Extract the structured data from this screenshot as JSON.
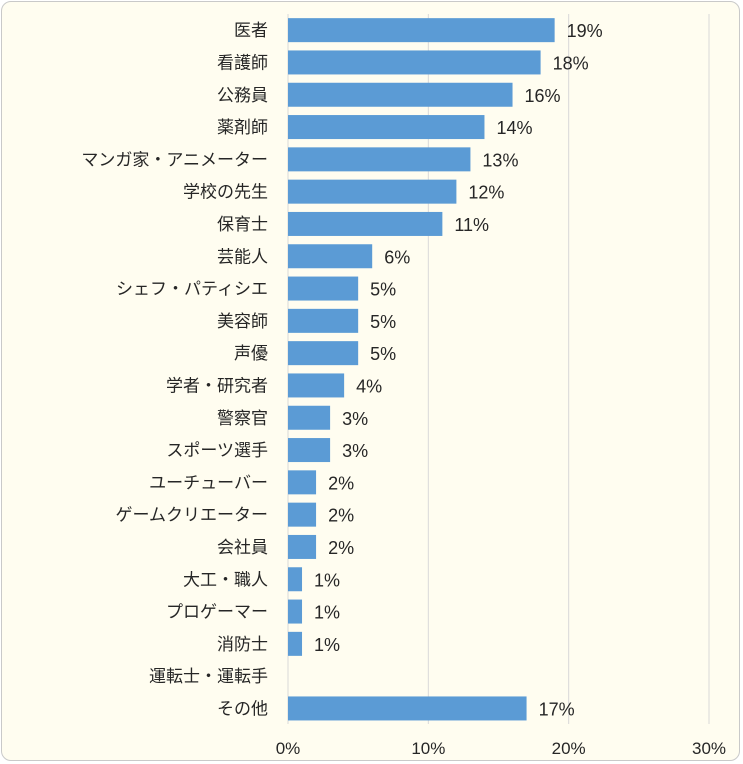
{
  "chart_data": {
    "type": "bar",
    "orientation": "horizontal",
    "categories": [
      "医者",
      "看護師",
      "公務員",
      "薬剤師",
      "マンガ家・アニメーター",
      "学校の先生",
      "保育士",
      "芸能人",
      "シェフ・パティシエ",
      "美容師",
      "声優",
      "学者・研究者",
      "警察官",
      "スポーツ選手",
      "ユーチューバー",
      "ゲームクリエーター",
      "会社員",
      "大工・職人",
      "プロゲーマー",
      "消防士",
      "運転士・運転手",
      "その他"
    ],
    "values": [
      19,
      18,
      16,
      14,
      13,
      12,
      11,
      6,
      5,
      5,
      5,
      4,
      3,
      3,
      2,
      2,
      2,
      1,
      1,
      1,
      0,
      17
    ],
    "data_labels": [
      "19%",
      "18%",
      "16%",
      "14%",
      "13%",
      "12%",
      "11%",
      "6%",
      "5%",
      "5%",
      "5%",
      "4%",
      "3%",
      "3%",
      "2%",
      "2%",
      "2%",
      "1%",
      "1%",
      "1%",
      "",
      "17%"
    ],
    "xlim": [
      0,
      30
    ],
    "xticks": [
      0,
      10,
      20,
      30
    ],
    "xtick_labels": [
      "0%",
      "10%",
      "20%",
      "30%"
    ],
    "title": "",
    "xlabel": "",
    "ylabel": "",
    "grid": "vertical",
    "legend": "none",
    "bar_color": "#5b9bd5",
    "grid_color": "#d9d9d9",
    "background_color": "#fffdf0"
  }
}
